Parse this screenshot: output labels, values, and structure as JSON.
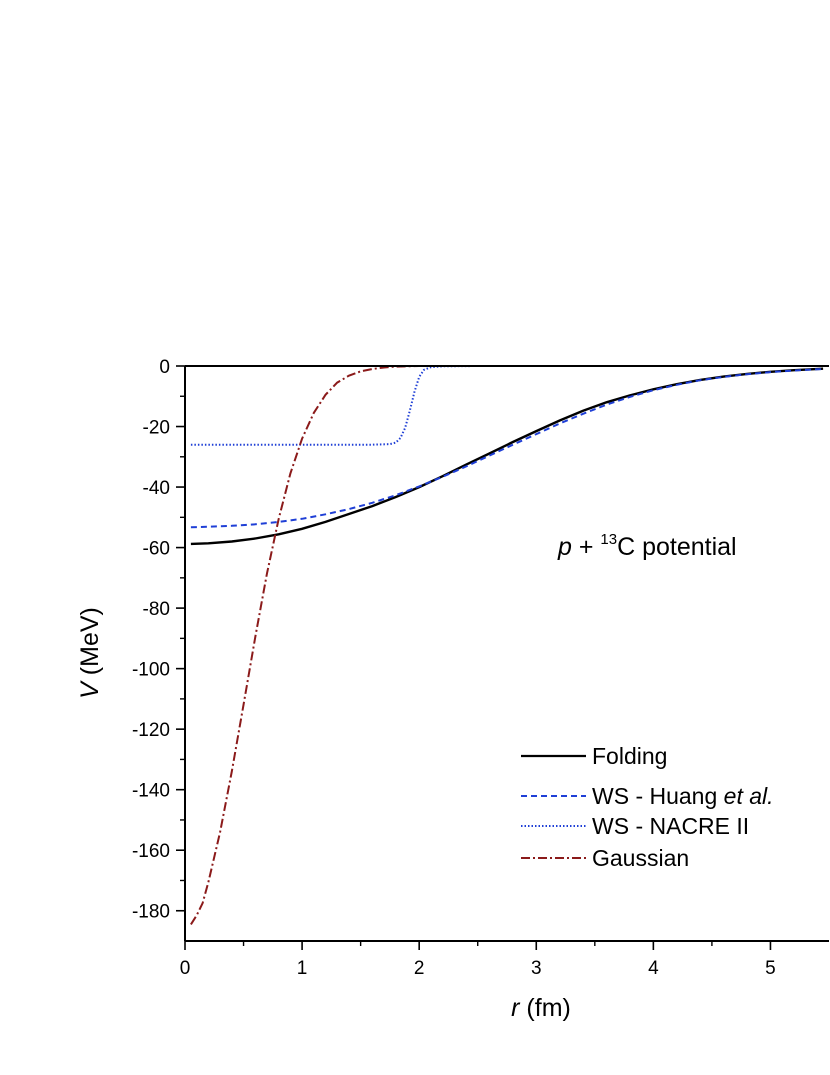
{
  "chart_data": {
    "type": "line",
    "xlabel_var": "r",
    "xlabel_unit": "(fm)",
    "ylabel_var": "V",
    "ylabel_unit": "(MeV)",
    "xlim": [
      0,
      5.5
    ],
    "ylim": [
      -190,
      0
    ],
    "x_ticks": [
      0,
      1,
      2,
      3,
      4,
      5
    ],
    "y_ticks": [
      0,
      -20,
      -40,
      -60,
      -80,
      -100,
      -120,
      -140,
      -160,
      -180
    ],
    "grid": false,
    "legend_position": "bottom-right",
    "annotation": {
      "prefix_italic": "p",
      "plus": " + ",
      "superscript": "13",
      "suffix": "C potential"
    },
    "legend": {
      "folding": "Folding",
      "huang_prefix": "WS - Huang ",
      "huang_italic": "et al.",
      "nacre": "WS - NACRE II",
      "gaussian": "Gaussian"
    },
    "series": [
      {
        "key": "folding",
        "color": "#000000",
        "dash": "solid",
        "x": [
          0.05,
          0.2,
          0.4,
          0.6,
          0.8,
          1.0,
          1.2,
          1.4,
          1.6,
          1.8,
          2.0,
          2.2,
          2.4,
          2.6,
          2.8,
          3.0,
          3.2,
          3.4,
          3.6,
          3.8,
          4.0,
          4.2,
          4.4,
          4.6,
          4.8,
          5.0,
          5.2,
          5.45
        ],
        "y": [
          -58.8,
          -58.6,
          -58.0,
          -57.0,
          -55.6,
          -53.8,
          -51.5,
          -48.9,
          -46.3,
          -43.3,
          -40.0,
          -36.4,
          -32.6,
          -28.9,
          -25.1,
          -21.5,
          -18.0,
          -14.8,
          -12.0,
          -9.7,
          -7.7,
          -6.0,
          -4.6,
          -3.5,
          -2.6,
          -1.9,
          -1.4,
          -0.9
        ]
      },
      {
        "key": "huang",
        "color": "#1f3fd6",
        "dash": "dashed",
        "x": [
          0.05,
          0.2,
          0.4,
          0.6,
          0.8,
          1.0,
          1.2,
          1.4,
          1.6,
          1.8,
          2.0,
          2.2,
          2.4,
          2.6,
          2.8,
          3.0,
          3.2,
          3.4,
          3.6,
          3.8,
          4.0,
          4.2,
          4.4,
          4.6,
          4.8,
          5.0,
          5.2,
          5.45
        ],
        "y": [
          -53.3,
          -53.1,
          -52.8,
          -52.3,
          -51.5,
          -50.5,
          -49.0,
          -47.3,
          -45.2,
          -42.7,
          -39.8,
          -36.6,
          -33.2,
          -29.6,
          -26.0,
          -22.5,
          -19.0,
          -15.8,
          -12.8,
          -10.2,
          -8.0,
          -6.2,
          -4.7,
          -3.6,
          -2.7,
          -2.0,
          -1.5,
          -1.0
        ]
      },
      {
        "key": "nacre",
        "color": "#1f3fd6",
        "dash": "dotted",
        "x": [
          0.05,
          0.4,
          0.8,
          1.2,
          1.6,
          1.75,
          1.8,
          1.84,
          1.88,
          1.92,
          1.96,
          2.0,
          2.04,
          2.1,
          2.2,
          2.5,
          3.0,
          4.0,
          5.0,
          5.45
        ],
        "y": [
          -26.0,
          -26.0,
          -26.0,
          -26.0,
          -26.0,
          -25.8,
          -25.3,
          -23.8,
          -20.5,
          -14.8,
          -8.5,
          -3.6,
          -1.3,
          -0.4,
          -0.1,
          0,
          0,
          0,
          0,
          0
        ]
      },
      {
        "key": "gaussian",
        "color": "#8b1a1a",
        "dash": "dashdot",
        "x": [
          0.05,
          0.1,
          0.15,
          0.2,
          0.3,
          0.4,
          0.5,
          0.6,
          0.7,
          0.8,
          0.9,
          1.0,
          1.1,
          1.2,
          1.3,
          1.4,
          1.5,
          1.6,
          1.7,
          1.8,
          1.9,
          2.0,
          2.5,
          3.0,
          4.0,
          5.0,
          5.45
        ],
        "y": [
          -184.5,
          -181.5,
          -177.5,
          -170.5,
          -154.0,
          -134.0,
          -112.0,
          -89.5,
          -68.5,
          -50.5,
          -35.5,
          -24.0,
          -15.5,
          -9.5,
          -5.5,
          -3.2,
          -1.8,
          -1.0,
          -0.5,
          -0.2,
          -0.1,
          0,
          0,
          0,
          0,
          0,
          0
        ]
      }
    ]
  }
}
